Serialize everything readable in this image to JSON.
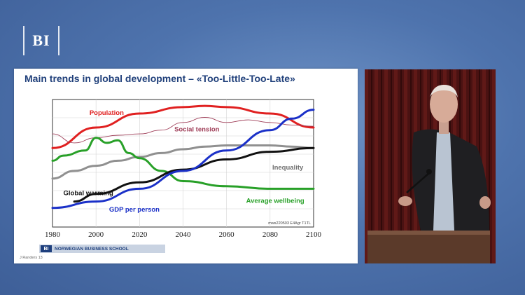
{
  "logo": {
    "text": "BI"
  },
  "slide": {
    "title": "Main trends in global development  –  «Too-Little-Too-Late»",
    "footer_logo": "BI",
    "footer_text": "NORWEGIAN BUSINESS SCHOOL",
    "credit": "J Randers 13",
    "chart_code": "mws220503 E4Agr T1TL"
  },
  "chart_data": {
    "type": "line",
    "title": "",
    "xlabel": "",
    "ylabel": "",
    "xlim": [
      1980,
      2100
    ],
    "xticks": [
      1980,
      2000,
      2020,
      2040,
      2060,
      2080,
      2100
    ],
    "grid": true,
    "series": [
      {
        "name": "Population",
        "color": "#e02020",
        "x": [
          1980,
          2000,
          2020,
          2040,
          2050,
          2060,
          2080,
          2100
        ],
        "y": [
          62,
          78,
          89,
          94,
          95,
          94,
          89,
          78
        ]
      },
      {
        "name": "Social tension",
        "color": "#a0405a",
        "x": [
          1980,
          1990,
          2000,
          2010,
          2020,
          2030,
          2040,
          2050,
          2060,
          2070,
          2080,
          2090,
          2100
        ],
        "y": [
          73,
          66,
          70,
          72,
          73,
          76,
          82,
          86,
          82,
          84,
          82,
          80,
          79
        ]
      },
      {
        "name": "Inequality",
        "color": "#909090",
        "x": [
          1980,
          1990,
          2000,
          2010,
          2020,
          2030,
          2040,
          2050,
          2060,
          2070,
          2080,
          2090,
          2100
        ],
        "y": [
          38,
          44,
          48,
          52,
          55,
          58,
          61,
          63,
          64,
          64,
          64,
          63,
          62
        ]
      },
      {
        "name": "Average wellbeing",
        "color": "#28a028",
        "x": [
          1980,
          1985,
          1995,
          2000,
          2005,
          2010,
          2015,
          2020,
          2030,
          2040,
          2060,
          2080,
          2100
        ],
        "y": [
          52,
          56,
          60,
          70,
          66,
          68,
          58,
          54,
          44,
          36,
          32,
          30,
          30
        ]
      },
      {
        "name": "Global warming",
        "color": "#111111",
        "x": [
          1990,
          2000,
          2020,
          2040,
          2060,
          2080,
          2100
        ],
        "y": [
          20,
          26,
          35,
          45,
          53,
          59,
          62
        ]
      },
      {
        "name": "GDP per person",
        "color": "#1a30c8",
        "x": [
          1980,
          2000,
          2020,
          2040,
          2060,
          2080,
          2090,
          2100
        ],
        "y": [
          15,
          20,
          30,
          44,
          60,
          76,
          85,
          92
        ]
      }
    ]
  }
}
